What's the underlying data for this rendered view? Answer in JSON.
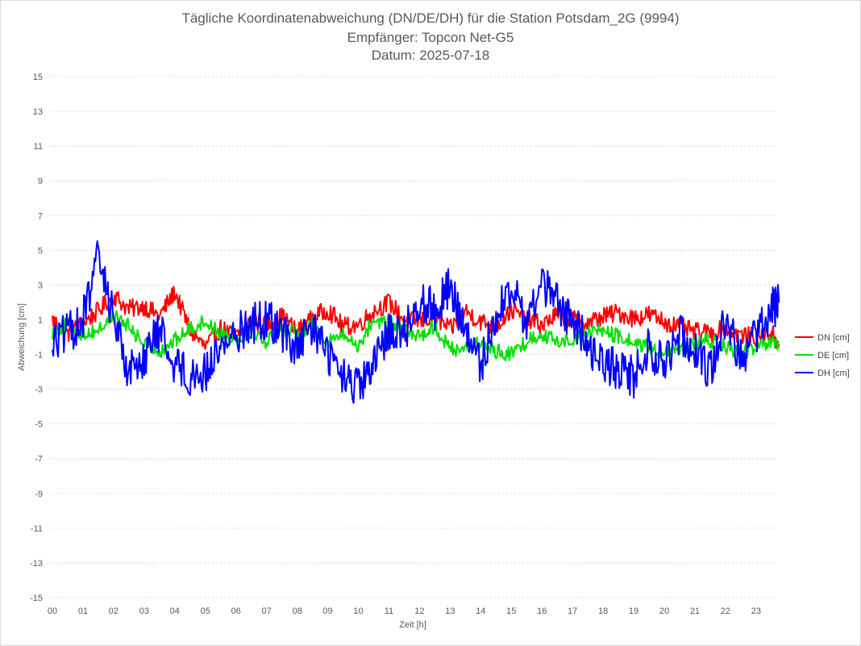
{
  "title": {
    "line1": "Tägliche Koordinatenabweichung (DN/DE/DH) für die Station Potsdam_2G (9994)",
    "line2": "Empfänger: Topcon Net-G5",
    "line3": "Datum: 2025-07-18"
  },
  "chart_data": {
    "type": "line",
    "xlabel": "Zeit [h]",
    "ylabel": "Abweichung [cm]",
    "xlim": [
      0,
      24
    ],
    "ylim": [
      -15,
      15
    ],
    "x_ticks": [
      "00",
      "01",
      "02",
      "03",
      "04",
      "05",
      "06",
      "07",
      "08",
      "09",
      "10",
      "11",
      "12",
      "13",
      "14",
      "15",
      "16",
      "17",
      "18",
      "19",
      "20",
      "21",
      "22",
      "23"
    ],
    "y_ticks": [
      "15",
      "13",
      "11",
      "9",
      "7",
      "5",
      "3",
      "1",
      "-1",
      "-3",
      "-5",
      "-7",
      "-9",
      "-11",
      "-13",
      "-15"
    ],
    "grid": true,
    "legend_position": "right",
    "x": [
      0.0,
      0.5,
      1.0,
      1.5,
      2.0,
      2.5,
      3.0,
      3.5,
      4.0,
      4.5,
      5.0,
      5.5,
      6.0,
      6.5,
      7.0,
      7.5,
      8.0,
      8.5,
      9.0,
      9.5,
      10.0,
      10.5,
      11.0,
      11.5,
      12.0,
      12.5,
      13.0,
      13.5,
      14.0,
      14.5,
      15.0,
      15.5,
      16.0,
      16.5,
      17.0,
      17.5,
      18.0,
      18.5,
      19.0,
      19.5,
      20.0,
      20.5,
      21.0,
      21.5,
      22.0,
      22.5,
      23.0,
      23.5,
      23.75
    ],
    "series": [
      {
        "name": "DN [cm]",
        "color": "#ff0000",
        "values": [
          1.0,
          0.2,
          0.8,
          1.5,
          2.4,
          1.6,
          1.8,
          1.2,
          2.6,
          0.4,
          -0.6,
          0.5,
          0.0,
          0.9,
          0.7,
          1.2,
          0.3,
          1.1,
          1.6,
          0.6,
          0.7,
          1.5,
          2.0,
          1.0,
          0.9,
          1.2,
          0.4,
          1.5,
          0.9,
          0.6,
          1.6,
          1.0,
          0.7,
          1.3,
          1.0,
          0.8,
          1.2,
          1.4,
          1.1,
          1.3,
          0.9,
          0.6,
          0.3,
          0.2,
          0.5,
          0.1,
          0.0,
          0.3,
          -0.4
        ]
      },
      {
        "name": "DE [cm]",
        "color": "#00e000",
        "values": [
          0.3,
          0.7,
          0.2,
          0.4,
          1.2,
          0.6,
          -0.4,
          -0.8,
          -0.2,
          0.5,
          0.9,
          0.2,
          -0.1,
          0.4,
          -0.3,
          0.6,
          0.1,
          0.7,
          -0.2,
          0.1,
          -0.5,
          1.0,
          0.8,
          0.4,
          0.1,
          0.6,
          -0.7,
          -0.6,
          -0.4,
          -0.8,
          -1.0,
          -0.2,
          0.2,
          -0.3,
          -0.1,
          0.3,
          0.4,
          0.0,
          -0.3,
          -0.6,
          -0.9,
          -0.8,
          -0.4,
          -0.2,
          -0.6,
          -0.9,
          -0.7,
          -0.3,
          -0.6
        ]
      },
      {
        "name": "DH [cm]",
        "color": "#0000ff",
        "values": [
          -0.3,
          0.2,
          1.0,
          4.6,
          1.2,
          -2.0,
          -1.1,
          0.4,
          -1.5,
          -2.2,
          -2.1,
          -0.5,
          0.2,
          0.8,
          1.0,
          0.4,
          -0.8,
          0.6,
          -0.9,
          -2.4,
          -3.0,
          -1.8,
          0.5,
          0.2,
          2.2,
          1.6,
          3.0,
          0.2,
          -1.7,
          1.3,
          2.8,
          0.8,
          3.2,
          2.0,
          0.9,
          -0.4,
          -1.4,
          -1.9,
          -2.3,
          -0.6,
          -1.7,
          0.3,
          -0.6,
          -2.0,
          1.2,
          -1.2,
          0.0,
          1.6,
          2.0
        ]
      }
    ]
  }
}
